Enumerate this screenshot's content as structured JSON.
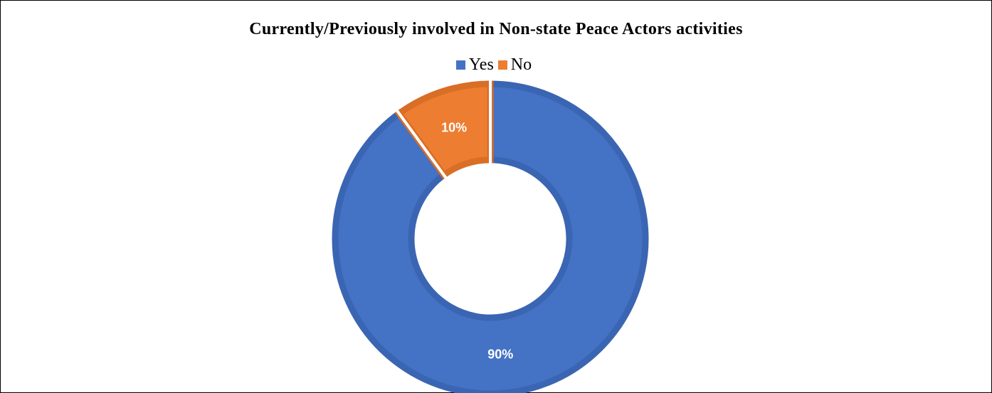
{
  "chart_data": {
    "type": "pie",
    "donut": true,
    "title": "Currently/Previously involved in Non-state Peace Actors activities",
    "legend_position": "top",
    "categories": [
      "Yes",
      "No"
    ],
    "values": [
      90,
      10
    ],
    "value_labels": [
      "90%",
      "10%"
    ],
    "colors": [
      "#4472C4",
      "#ED7D31"
    ],
    "edge_colors": [
      "#3A65B3",
      "#D96E26"
    ]
  }
}
